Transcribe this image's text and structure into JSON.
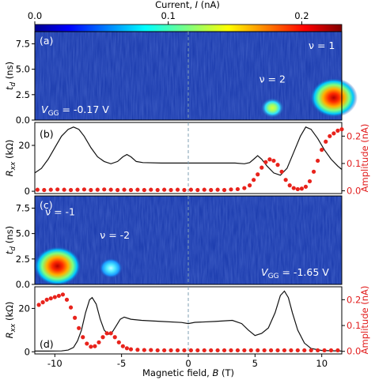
{
  "colorbar": {
    "label": "Current, I (nA)",
    "label_main": "Current, ",
    "label_var": "I",
    "label_unit": " (nA)",
    "ticks": [
      "0.0",
      "0.1",
      "0.2"
    ],
    "tick_values": [
      0.0,
      0.1,
      0.2
    ],
    "range": [
      0.0,
      0.23
    ],
    "colormap": "jet"
  },
  "colors": {
    "trace": "#111111",
    "points": "#e8231c",
    "dashed": "#7f9fb3",
    "heatmap_bg": "#1f3fb0"
  },
  "chart_data": [
    {
      "type": "heatmap",
      "panel": "(a)",
      "ylabel": "t_d (ns)",
      "ylabel_main": "t",
      "ylabel_sub": "d",
      "ylabel_unit": " (ns)",
      "y_ticks": [
        "0.0",
        "2.5",
        "5.0",
        "7.5"
      ],
      "y_tick_values": [
        0.0,
        2.5,
        5.0,
        7.5
      ],
      "ylim": [
        0,
        8.7
      ],
      "xlim": [
        -11.5,
        11.5
      ],
      "gate_label": "V_GG = -0.17 V",
      "gate_main": "V",
      "gate_sub": "GG",
      "gate_value": " = -0.17 V",
      "annotations": [
        {
          "text": "ν = 2",
          "x": 6.3,
          "y": 3.7
        },
        {
          "text": "ν = 1",
          "x": 10.0,
          "y": 7.0
        }
      ],
      "blobs": [
        {
          "x": 6.3,
          "y": 1.2,
          "peak": 0.14
        },
        {
          "x": 10.9,
          "y": 2.2,
          "peak": 0.23
        }
      ]
    },
    {
      "type": "line",
      "panel": "(b)",
      "ylabel": "R_xx (kΩ)",
      "ylabel_main": "R",
      "ylabel_sub": "xx",
      "ylabel_unit": " (kΩ)",
      "y_ticks": [
        "0",
        "20"
      ],
      "y_tick_values": [
        0,
        20
      ],
      "ylim": [
        -1,
        30
      ],
      "y2label": "Amplitude (nA)",
      "y2_ticks": [
        "0.0",
        "0.1",
        "0.2"
      ],
      "y2_tick_values": [
        0.0,
        0.1,
        0.2
      ],
      "y2lim": [
        -0.01,
        0.25
      ],
      "xlim": [
        -11.5,
        11.5
      ],
      "series": [
        {
          "axis": "left",
          "points": [
            [
              -11.5,
              8
            ],
            [
              -11,
              10
            ],
            [
              -10.5,
              14
            ],
            [
              -10,
              19
            ],
            [
              -9.5,
              24
            ],
            [
              -9,
              27
            ],
            [
              -8.6,
              28
            ],
            [
              -8.2,
              27
            ],
            [
              -7.8,
              24
            ],
            [
              -7.3,
              19
            ],
            [
              -6.8,
              15
            ],
            [
              -6.3,
              13
            ],
            [
              -5.8,
              12
            ],
            [
              -5.3,
              13
            ],
            [
              -4.9,
              15
            ],
            [
              -4.6,
              16
            ],
            [
              -4.3,
              15
            ],
            [
              -3.9,
              13
            ],
            [
              -3.4,
              12.5
            ],
            [
              -2,
              12.3
            ],
            [
              0,
              12.3
            ],
            [
              2,
              12.3
            ],
            [
              3.5,
              12.3
            ],
            [
              4.2,
              12
            ],
            [
              4.6,
              12.5
            ],
            [
              4.9,
              14
            ],
            [
              5.2,
              15.5
            ],
            [
              5.5,
              14
            ],
            [
              5.9,
              11
            ],
            [
              6.4,
              8
            ],
            [
              6.9,
              7
            ],
            [
              7.4,
              10
            ],
            [
              7.9,
              17
            ],
            [
              8.4,
              24
            ],
            [
              8.8,
              28
            ],
            [
              9.2,
              27
            ],
            [
              9.7,
              23
            ],
            [
              10.2,
              18
            ],
            [
              10.7,
              14
            ],
            [
              11.2,
              11
            ],
            [
              11.5,
              9.5
            ]
          ]
        },
        {
          "axis": "right",
          "points": [
            [
              -11.3,
              0.004
            ],
            [
              -10.8,
              0.003
            ],
            [
              -10.3,
              0.004
            ],
            [
              -9.8,
              0.005
            ],
            [
              -9.3,
              0.004
            ],
            [
              -8.8,
              0.003
            ],
            [
              -8.3,
              0.004
            ],
            [
              -7.8,
              0.005
            ],
            [
              -7.3,
              0.003
            ],
            [
              -6.8,
              0.004
            ],
            [
              -6.3,
              0.005
            ],
            [
              -5.8,
              0.004
            ],
            [
              -5.3,
              0.003
            ],
            [
              -4.8,
              0.004
            ],
            [
              -4.3,
              0.003
            ],
            [
              -3.8,
              0.004
            ],
            [
              -3.3,
              0.003
            ],
            [
              -2.8,
              0.004
            ],
            [
              -2.3,
              0.003
            ],
            [
              -1.8,
              0.004
            ],
            [
              -1.3,
              0.003
            ],
            [
              -0.8,
              0.004
            ],
            [
              -0.3,
              0.003
            ],
            [
              0.2,
              0.004
            ],
            [
              0.7,
              0.003
            ],
            [
              1.2,
              0.004
            ],
            [
              1.7,
              0.003
            ],
            [
              2.2,
              0.004
            ],
            [
              2.7,
              0.003
            ],
            [
              3.2,
              0.005
            ],
            [
              3.7,
              0.006
            ],
            [
              4.2,
              0.01
            ],
            [
              4.6,
              0.02
            ],
            [
              4.9,
              0.04
            ],
            [
              5.2,
              0.06
            ],
            [
              5.5,
              0.085
            ],
            [
              5.8,
              0.105
            ],
            [
              6.1,
              0.115
            ],
            [
              6.4,
              0.11
            ],
            [
              6.7,
              0.095
            ],
            [
              7.0,
              0.07
            ],
            [
              7.3,
              0.04
            ],
            [
              7.6,
              0.02
            ],
            [
              7.9,
              0.01
            ],
            [
              8.2,
              0.006
            ],
            [
              8.5,
              0.008
            ],
            [
              8.8,
              0.015
            ],
            [
              9.1,
              0.035
            ],
            [
              9.4,
              0.07
            ],
            [
              9.7,
              0.11
            ],
            [
              10.0,
              0.15
            ],
            [
              10.3,
              0.18
            ],
            [
              10.6,
              0.2
            ],
            [
              10.9,
              0.21
            ],
            [
              11.2,
              0.22
            ],
            [
              11.5,
              0.225
            ]
          ]
        }
      ]
    },
    {
      "type": "heatmap",
      "panel": "(c)",
      "ylabel": "t_d (ns)",
      "ylabel_main": "t",
      "ylabel_sub": "d",
      "ylabel_unit": " (ns)",
      "y_ticks": [
        "0.0",
        "2.5",
        "5.0",
        "7.5"
      ],
      "y_tick_values": [
        0.0,
        2.5,
        5.0,
        7.5
      ],
      "ylim": [
        0,
        8.7
      ],
      "xlim": [
        -11.5,
        11.5
      ],
      "gate_label": "V_GG = -1.65 V",
      "gate_main": "V",
      "gate_sub": "GG",
      "gate_value": " = -1.65 V",
      "annotations": [
        {
          "text": "ν = -1",
          "x": -9.6,
          "y": 6.8
        },
        {
          "text": "ν = -2",
          "x": -5.5,
          "y": 4.5
        }
      ],
      "blobs": [
        {
          "x": -9.8,
          "y": 1.8,
          "peak": 0.23
        },
        {
          "x": -5.8,
          "y": 1.6,
          "peak": 0.12
        }
      ]
    },
    {
      "type": "line",
      "panel": "(d)",
      "ylabel": "R_xx (kΩ)",
      "ylabel_main": "R",
      "ylabel_sub": "xx",
      "ylabel_unit": " (kΩ)",
      "y_ticks": [
        "0",
        "20"
      ],
      "y_tick_values": [
        0,
        20
      ],
      "ylim": [
        -1,
        30
      ],
      "y2label": "Amplitude (nA)",
      "y2_ticks": [
        "0.0",
        "0.1",
        "0.2"
      ],
      "y2_tick_values": [
        0.0,
        0.1,
        0.2
      ],
      "y2lim": [
        -0.01,
        0.25
      ],
      "xlabel": "Magnetic field, B (T)",
      "xlabel_main": "Magnetic field, ",
      "xlabel_var": "B",
      "xlabel_unit": " (T)",
      "x_ticks": [
        "-10",
        "-5",
        "0",
        "5",
        "10"
      ],
      "x_tick_values": [
        -10,
        -5,
        0,
        5,
        10
      ],
      "xlim": [
        -11.5,
        11.5
      ],
      "series": [
        {
          "axis": "left",
          "points": [
            [
              -11.5,
              0.3
            ],
            [
              -10.5,
              0.3
            ],
            [
              -9.5,
              0.4
            ],
            [
              -9,
              0.8
            ],
            [
              -8.6,
              2
            ],
            [
              -8.3,
              5
            ],
            [
              -8,
              10
            ],
            [
              -7.7,
              18
            ],
            [
              -7.4,
              24
            ],
            [
              -7.2,
              25
            ],
            [
              -6.9,
              22
            ],
            [
              -6.6,
              15
            ],
            [
              -6.3,
              10
            ],
            [
              -6.0,
              8
            ],
            [
              -5.7,
              9
            ],
            [
              -5.4,
              12
            ],
            [
              -5.1,
              15
            ],
            [
              -4.8,
              16
            ],
            [
              -4.3,
              15
            ],
            [
              -3.5,
              14.5
            ],
            [
              -2,
              14
            ],
            [
              -0.5,
              13.5
            ],
            [
              0,
              13
            ],
            [
              0.5,
              13.6
            ],
            [
              2,
              14
            ],
            [
              3.3,
              14.5
            ],
            [
              4,
              13
            ],
            [
              4.5,
              10
            ],
            [
              5.0,
              7.5
            ],
            [
              5.5,
              8.5
            ],
            [
              6,
              11
            ],
            [
              6.5,
              18
            ],
            [
              6.9,
              26
            ],
            [
              7.2,
              28
            ],
            [
              7.5,
              25
            ],
            [
              7.8,
              18
            ],
            [
              8.2,
              10
            ],
            [
              8.7,
              4
            ],
            [
              9.2,
              1.5
            ],
            [
              10,
              0.6
            ],
            [
              11.5,
              0.3
            ]
          ]
        },
        {
          "axis": "right",
          "points": [
            [
              -11.2,
              0.18
            ],
            [
              -10.9,
              0.19
            ],
            [
              -10.6,
              0.2
            ],
            [
              -10.3,
              0.205
            ],
            [
              -10,
              0.21
            ],
            [
              -9.7,
              0.215
            ],
            [
              -9.4,
              0.22
            ],
            [
              -9.1,
              0.2
            ],
            [
              -8.8,
              0.17
            ],
            [
              -8.5,
              0.13
            ],
            [
              -8.2,
              0.09
            ],
            [
              -7.9,
              0.055
            ],
            [
              -7.6,
              0.03
            ],
            [
              -7.3,
              0.018
            ],
            [
              -7.0,
              0.02
            ],
            [
              -6.7,
              0.035
            ],
            [
              -6.4,
              0.055
            ],
            [
              -6.1,
              0.07
            ],
            [
              -5.8,
              0.07
            ],
            [
              -5.5,
              0.055
            ],
            [
              -5.2,
              0.035
            ],
            [
              -4.9,
              0.02
            ],
            [
              -4.6,
              0.012
            ],
            [
              -4.3,
              0.008
            ],
            [
              -3.8,
              0.006
            ],
            [
              -3.3,
              0.005
            ],
            [
              -2.8,
              0.005
            ],
            [
              -2.3,
              0.004
            ],
            [
              -1.8,
              0.004
            ],
            [
              -1.3,
              0.004
            ],
            [
              -0.8,
              0.004
            ],
            [
              -0.3,
              0.004
            ],
            [
              0.2,
              0.004
            ],
            [
              0.7,
              0.004
            ],
            [
              1.2,
              0.004
            ],
            [
              1.7,
              0.004
            ],
            [
              2.2,
              0.004
            ],
            [
              2.7,
              0.004
            ],
            [
              3.2,
              0.004
            ],
            [
              3.7,
              0.004
            ],
            [
              4.2,
              0.004
            ],
            [
              4.7,
              0.004
            ],
            [
              5.2,
              0.004
            ],
            [
              5.7,
              0.004
            ],
            [
              6.2,
              0.004
            ],
            [
              6.7,
              0.004
            ],
            [
              7.2,
              0.004
            ],
            [
              7.7,
              0.004
            ],
            [
              8.2,
              0.004
            ],
            [
              8.7,
              0.004
            ],
            [
              9.2,
              0.004
            ],
            [
              9.7,
              0.004
            ],
            [
              10.2,
              0.004
            ],
            [
              10.7,
              0.004
            ],
            [
              11.2,
              0.004
            ]
          ]
        }
      ]
    }
  ]
}
